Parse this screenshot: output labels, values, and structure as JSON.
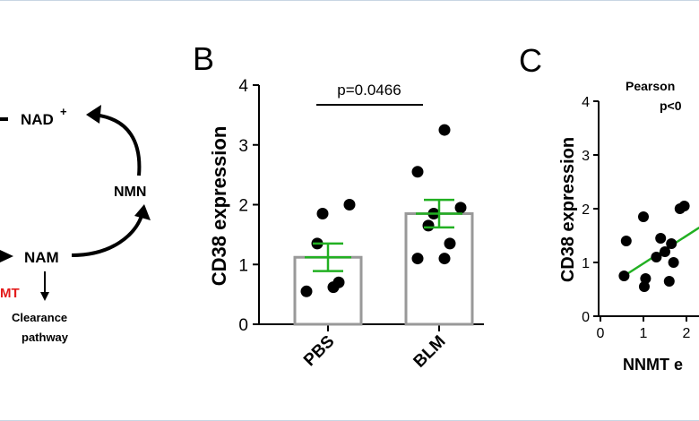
{
  "panel_a": {
    "nad_label": "NAD",
    "nad_superscript": "+",
    "nmn_label": "NMN",
    "nam_label": "NAM",
    "nnmt_label": "MT",
    "clearance_line1": "Clearance",
    "clearance_line2": "pathway",
    "nnmt_color": "#e31b1b",
    "arrow_color": "#000000"
  },
  "chart_data": [
    {
      "panel": "B",
      "type": "bar",
      "ylabel": "CD38 expression",
      "ylim": [
        0,
        4
      ],
      "yticks": [
        0,
        1,
        2,
        3,
        4
      ],
      "categories": [
        "PBS",
        "BLM"
      ],
      "values": [
        1.12,
        1.85
      ],
      "sem": [
        0.23,
        0.23
      ],
      "points": [
        [
          0.55,
          0.62,
          0.7,
          1.35,
          1.85,
          2.0
        ],
        [
          1.1,
          1.1,
          1.35,
          1.65,
          1.85,
          1.95,
          2.55,
          3.25
        ]
      ],
      "annotation": "p=0.0466",
      "bar_color": "#999999",
      "error_color": "#22b022",
      "point_color": "#000000"
    },
    {
      "panel": "C",
      "type": "scatter",
      "ylabel": "CD38 expression",
      "xlabel": "NNMT e",
      "ylim": [
        0,
        4
      ],
      "yticks": [
        0,
        1,
        2,
        3,
        4
      ],
      "xticks": [
        0,
        1,
        2
      ],
      "annotation_line1": "Pearson",
      "annotation_line2": "p<0",
      "points": {
        "x": [
          0.55,
          0.6,
          1.0,
          1.02,
          1.05,
          1.3,
          1.4,
          1.5,
          1.6,
          1.65,
          1.7,
          1.85,
          1.95
        ],
        "y": [
          0.75,
          1.4,
          1.85,
          0.55,
          0.7,
          1.1,
          1.45,
          1.2,
          0.65,
          1.35,
          1.0,
          2.0,
          2.05
        ]
      },
      "trend": {
        "x": [
          0.55,
          2.3
        ],
        "y": [
          0.75,
          1.65
        ]
      },
      "trend_color": "#22b022",
      "point_color": "#000000"
    }
  ],
  "panel_labels": {
    "b": "B",
    "c": "C"
  }
}
